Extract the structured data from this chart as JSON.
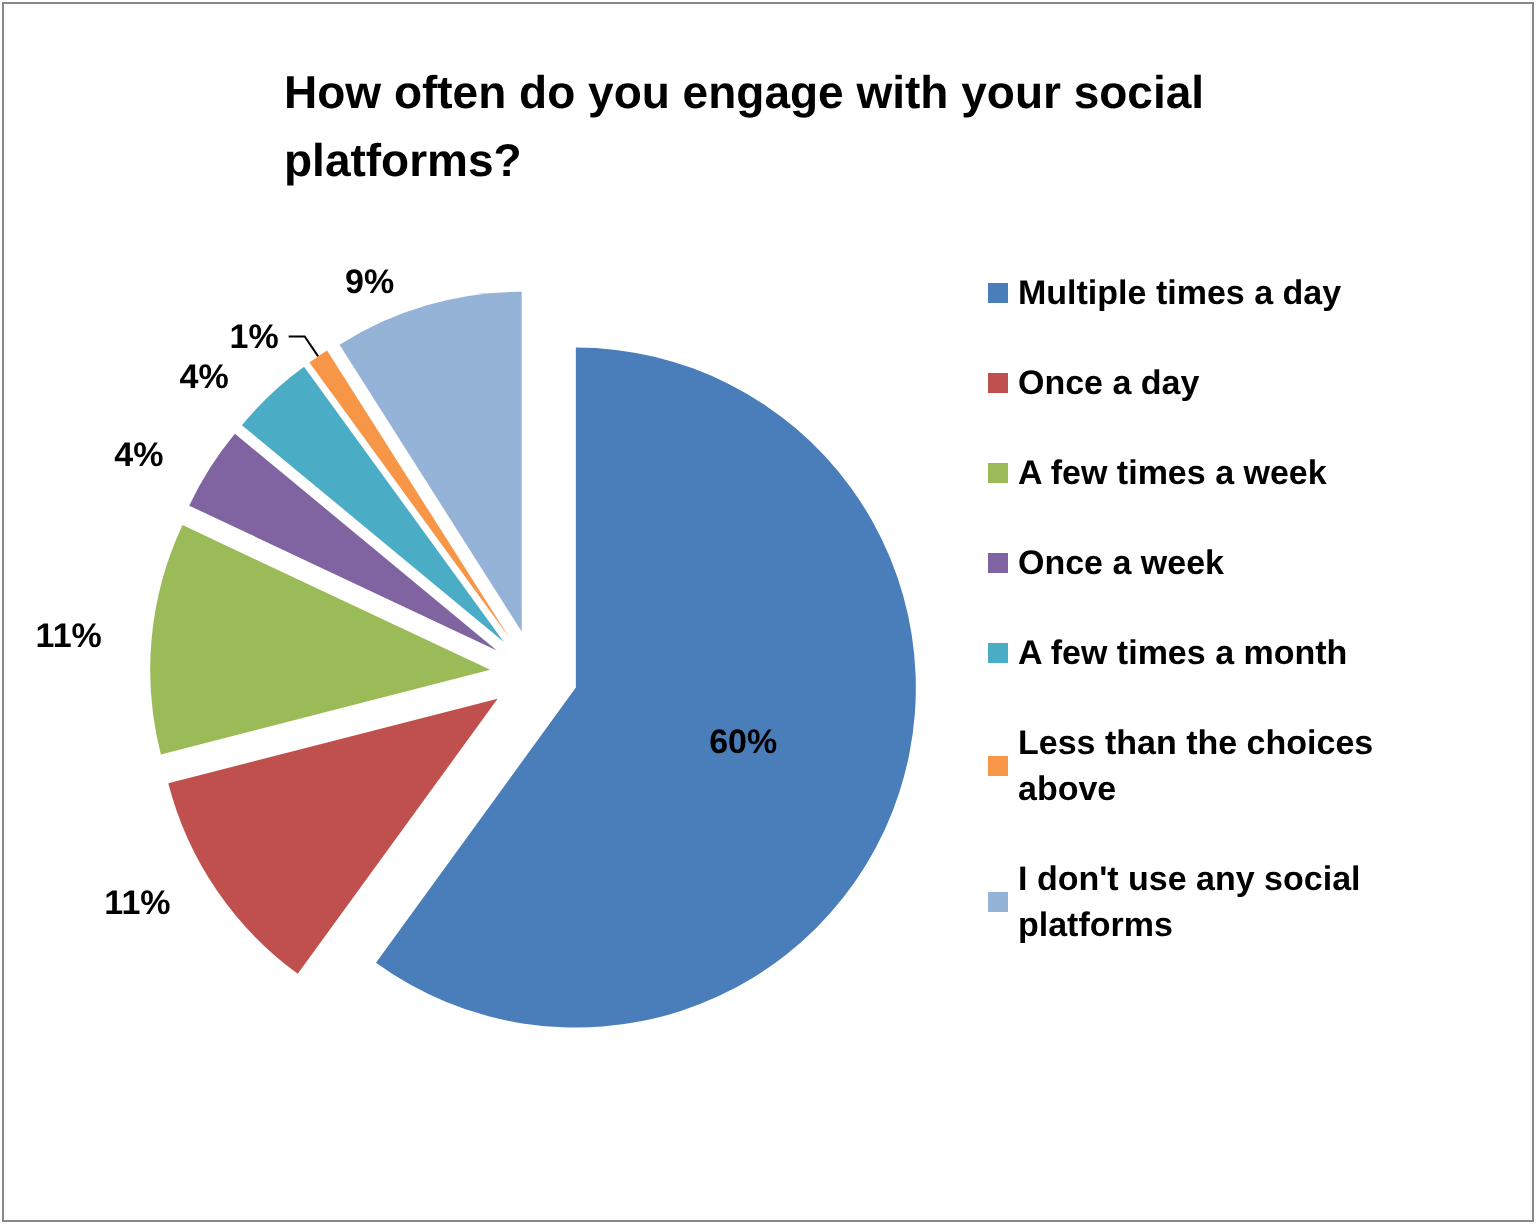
{
  "chart_data": {
    "type": "pie",
    "title": "How often do you engage with your social platforms?",
    "categories": [
      "Multiple times a day",
      "Once a day",
      "A few times a week",
      "Once a week",
      "A few times a month",
      "Less than the choices above",
      "I don't use any social platforms"
    ],
    "values": [
      60,
      11,
      11,
      4,
      4,
      1,
      9
    ],
    "value_labels": [
      "60%",
      "11%",
      "11%",
      "4%",
      "4%",
      "1%",
      "9%"
    ],
    "colors": [
      "#4a7ebb",
      "#c0504d",
      "#9bbb59",
      "#8064a2",
      "#4bacc6",
      "#f79646",
      "#95b3d7"
    ],
    "legend": "right"
  }
}
